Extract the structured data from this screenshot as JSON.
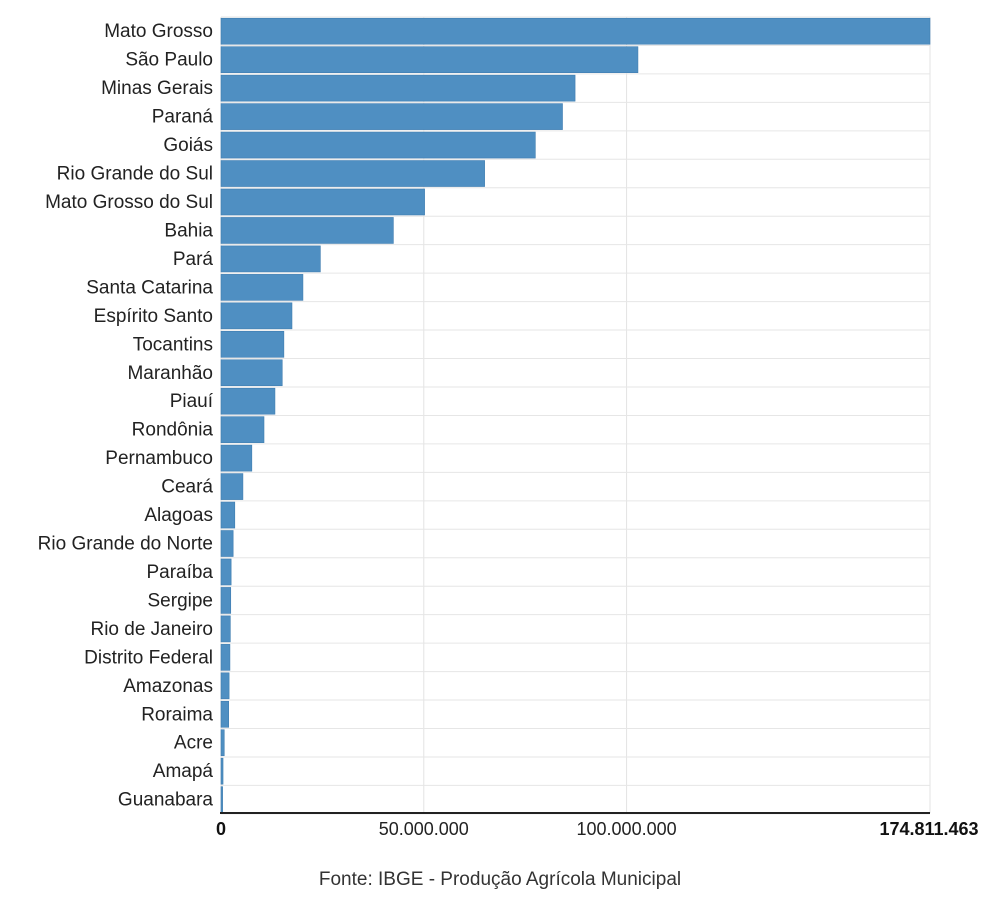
{
  "chart_data": {
    "type": "bar",
    "orientation": "horizontal",
    "categories": [
      "Mato Grosso",
      "São Paulo",
      "Minas Gerais",
      "Paraná",
      "Goiás",
      "Rio Grande do Sul",
      "Mato Grosso do Sul",
      "Bahia",
      "Pará",
      "Santa Catarina",
      "Espírito Santo",
      "Tocantins",
      "Maranhão",
      "Piauí",
      "Rondônia",
      "Pernambuco",
      "Ceará",
      "Alagoas",
      "Rio Grande do Norte",
      "Paraíba",
      "Sergipe",
      "Rio de Janeiro",
      "Distrito Federal",
      "Amazonas",
      "Roraima",
      "Acre",
      "Amapá",
      "Guanabara"
    ],
    "values": [
      174811463,
      102800000,
      87300000,
      84200000,
      77500000,
      65000000,
      50200000,
      42500000,
      24500000,
      20200000,
      17500000,
      15500000,
      15100000,
      13300000,
      10600000,
      7600000,
      5400000,
      3400000,
      3000000,
      2500000,
      2400000,
      2300000,
      2200000,
      2000000,
      1900000,
      800000,
      500000,
      400000
    ],
    "xlim": [
      0,
      174811463
    ],
    "x_ticks": [
      {
        "value": 0,
        "label": "0",
        "bold": true
      },
      {
        "value": 50000000,
        "label": "50.000.000",
        "bold": false
      },
      {
        "value": 100000000,
        "label": "100.000.000",
        "bold": false
      },
      {
        "value": 174811463,
        "label": "174.811.463",
        "bold": true
      }
    ],
    "grid": true,
    "title": "",
    "xlabel": "",
    "ylabel": "",
    "bar_color": "#4f8fc2",
    "bar_stroke_color": "#3f7db0",
    "source": "Fonte: IBGE - Produção Agrícola Municipal"
  }
}
